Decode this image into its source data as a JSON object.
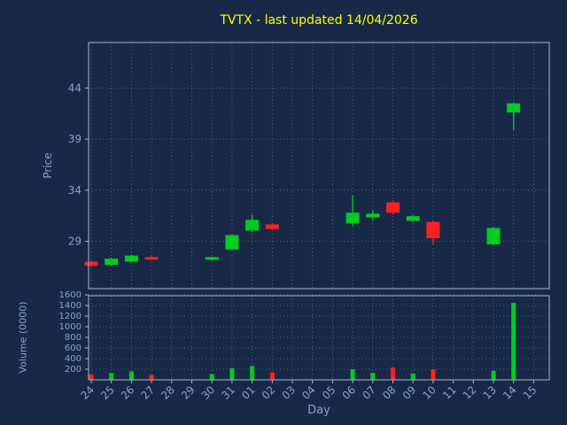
{
  "title": "TVTX - last updated 14/04/2026",
  "colors": {
    "background": "#172947",
    "up": "#00cc22",
    "down": "#ff2020",
    "grid": "#9aa7bc",
    "spine": "#aab6c8",
    "tick_text": "#8ba3c7",
    "title": "#ffff00"
  },
  "chart_data": {
    "type": "candlestick",
    "title": "TVTX - last updated 14/04/2026",
    "xlabel": "Day",
    "ylabel_price": "Price",
    "ylabel_volume": "Volume (0000)",
    "legend": "none",
    "grid": true,
    "x_ticks": [
      "24",
      "25",
      "26",
      "27",
      "28",
      "29",
      "30",
      "31",
      "01",
      "02",
      "03",
      "04",
      "05",
      "06",
      "07",
      "08",
      "09",
      "10",
      "11",
      "12",
      "13",
      "14",
      "15"
    ],
    "price_ticks": [
      29,
      34,
      39,
      44
    ],
    "volume_ticks": [
      200,
      400,
      600,
      800,
      1000,
      1200,
      1400,
      1600
    ],
    "price_axis_range": [
      24.4,
      48.5
    ],
    "volume_axis_range": [
      0,
      1700
    ],
    "candles": [
      {
        "day": "24",
        "open": 27.0,
        "high": 27.1,
        "low": 26.5,
        "close": 26.6,
        "volume": 100,
        "direction": "down"
      },
      {
        "day": "25",
        "open": 26.7,
        "high": 27.4,
        "low": 26.6,
        "close": 27.3,
        "volume": 130,
        "direction": "up"
      },
      {
        "day": "26",
        "open": 27.0,
        "high": 27.7,
        "low": 26.9,
        "close": 27.6,
        "volume": 160,
        "direction": "up"
      },
      {
        "day": "27",
        "open": 27.45,
        "high": 27.6,
        "low": 27.1,
        "close": 27.2,
        "volume": 90,
        "direction": "down"
      },
      {
        "day": "30",
        "open": 27.2,
        "high": 27.5,
        "low": 27.1,
        "close": 27.45,
        "volume": 110,
        "direction": "up"
      },
      {
        "day": "31",
        "open": 28.2,
        "high": 29.7,
        "low": 28.1,
        "close": 29.6,
        "volume": 220,
        "direction": "up"
      },
      {
        "day": "01",
        "open": 30.05,
        "high": 31.6,
        "low": 29.9,
        "close": 31.1,
        "volume": 260,
        "direction": "up"
      },
      {
        "day": "02",
        "open": 30.65,
        "high": 30.8,
        "low": 30.1,
        "close": 30.2,
        "volume": 140,
        "direction": "down"
      },
      {
        "day": "06",
        "open": 30.75,
        "high": 33.5,
        "low": 30.5,
        "close": 31.8,
        "volume": 200,
        "direction": "up"
      },
      {
        "day": "07",
        "open": 31.35,
        "high": 32.0,
        "low": 31.0,
        "close": 31.7,
        "volume": 130,
        "direction": "up"
      },
      {
        "day": "08",
        "open": 32.8,
        "high": 33.0,
        "low": 31.6,
        "close": 31.8,
        "volume": 230,
        "direction": "down"
      },
      {
        "day": "09",
        "open": 31.0,
        "high": 31.6,
        "low": 30.9,
        "close": 31.45,
        "volume": 120,
        "direction": "up"
      },
      {
        "day": "10",
        "open": 30.9,
        "high": 31.0,
        "low": 28.7,
        "close": 29.3,
        "volume": 200,
        "direction": "down"
      },
      {
        "day": "13",
        "open": 28.7,
        "high": 30.4,
        "low": 28.6,
        "close": 30.3,
        "volume": 170,
        "direction": "up"
      },
      {
        "day": "14",
        "open": 41.6,
        "high": 42.6,
        "low": 39.9,
        "close": 42.5,
        "volume": 1450,
        "direction": "up"
      }
    ]
  }
}
